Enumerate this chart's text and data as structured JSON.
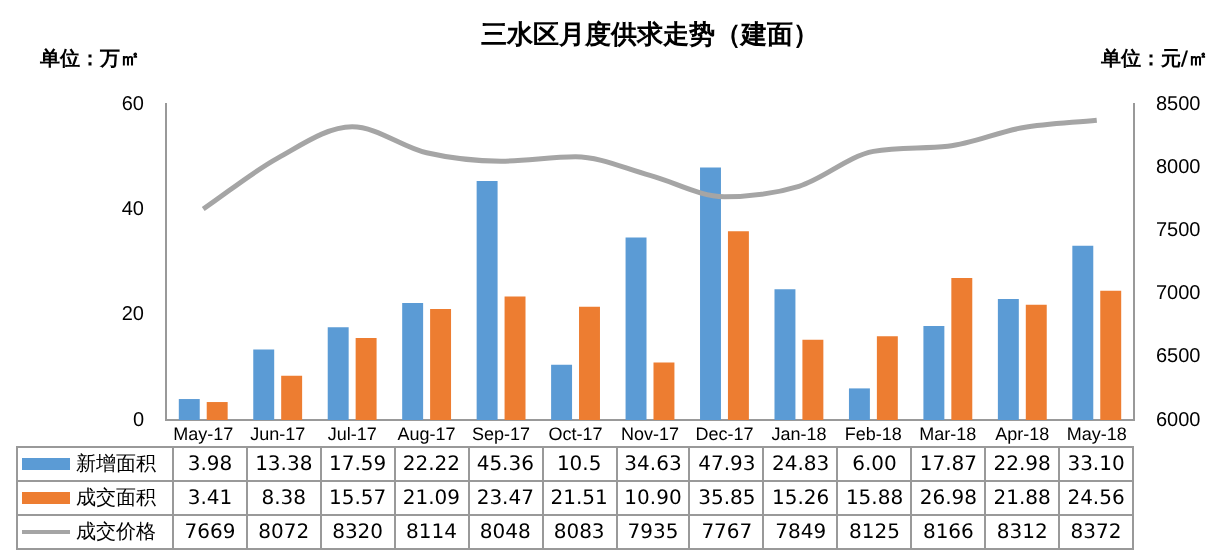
{
  "chart_data": {
    "type": "bar",
    "title": "三水区月度供求走势（建面）",
    "ylabel": "单位：万㎡",
    "y2label": "单位：元/㎡",
    "categories": [
      "May-17",
      "Jun-17",
      "Jul-17",
      "Aug-17",
      "Sep-17",
      "Oct-17",
      "Nov-17",
      "Dec-17",
      "Jan-18",
      "Feb-18",
      "Mar-18",
      "Apr-18",
      "May-18"
    ],
    "series": [
      {
        "name": "新增面积",
        "color": "#5b9bd5",
        "values": [
          3.98,
          13.38,
          17.59,
          22.22,
          45.36,
          10.5,
          34.63,
          47.93,
          24.83,
          6.0,
          17.87,
          22.98,
          33.1
        ],
        "value_labels": [
          "3.98",
          "13.38",
          "17.59",
          "22.22",
          "45.36",
          "10.5",
          "34.63",
          "47.93",
          "24.83",
          "6.00",
          "17.87",
          "22.98",
          "33.10"
        ]
      },
      {
        "name": "成交面积",
        "color": "#ed7d31",
        "values": [
          3.41,
          8.38,
          15.57,
          21.09,
          23.47,
          21.51,
          10.9,
          35.85,
          15.26,
          15.88,
          26.98,
          21.88,
          24.56
        ],
        "value_labels": [
          "3.41",
          "8.38",
          "15.57",
          "21.09",
          "23.47",
          "21.51",
          "10.90",
          "35.85",
          "15.26",
          "15.88",
          "26.98",
          "21.88",
          "24.56"
        ]
      },
      {
        "name": "成交价格",
        "type": "line",
        "axis": "y2",
        "color": "#a5a5a5",
        "values": [
          7669,
          8072,
          8320,
          8114,
          8048,
          8083,
          7935,
          7767,
          7849,
          8125,
          8166,
          8312,
          8372
        ],
        "value_labels": [
          "7669",
          "8072",
          "8320",
          "8114",
          "8048",
          "8083",
          "7935",
          "7767",
          "7849",
          "8125",
          "8166",
          "8312",
          "8372"
        ]
      }
    ],
    "ylim": [
      0,
      60
    ],
    "yticks": [
      0,
      20,
      40,
      60
    ],
    "y2lim": [
      6000,
      8500
    ],
    "y2ticks": [
      6000,
      6500,
      7000,
      7500,
      8000,
      8500
    ],
    "legend": "bottom",
    "marker": "none",
    "line_style": "solid"
  }
}
